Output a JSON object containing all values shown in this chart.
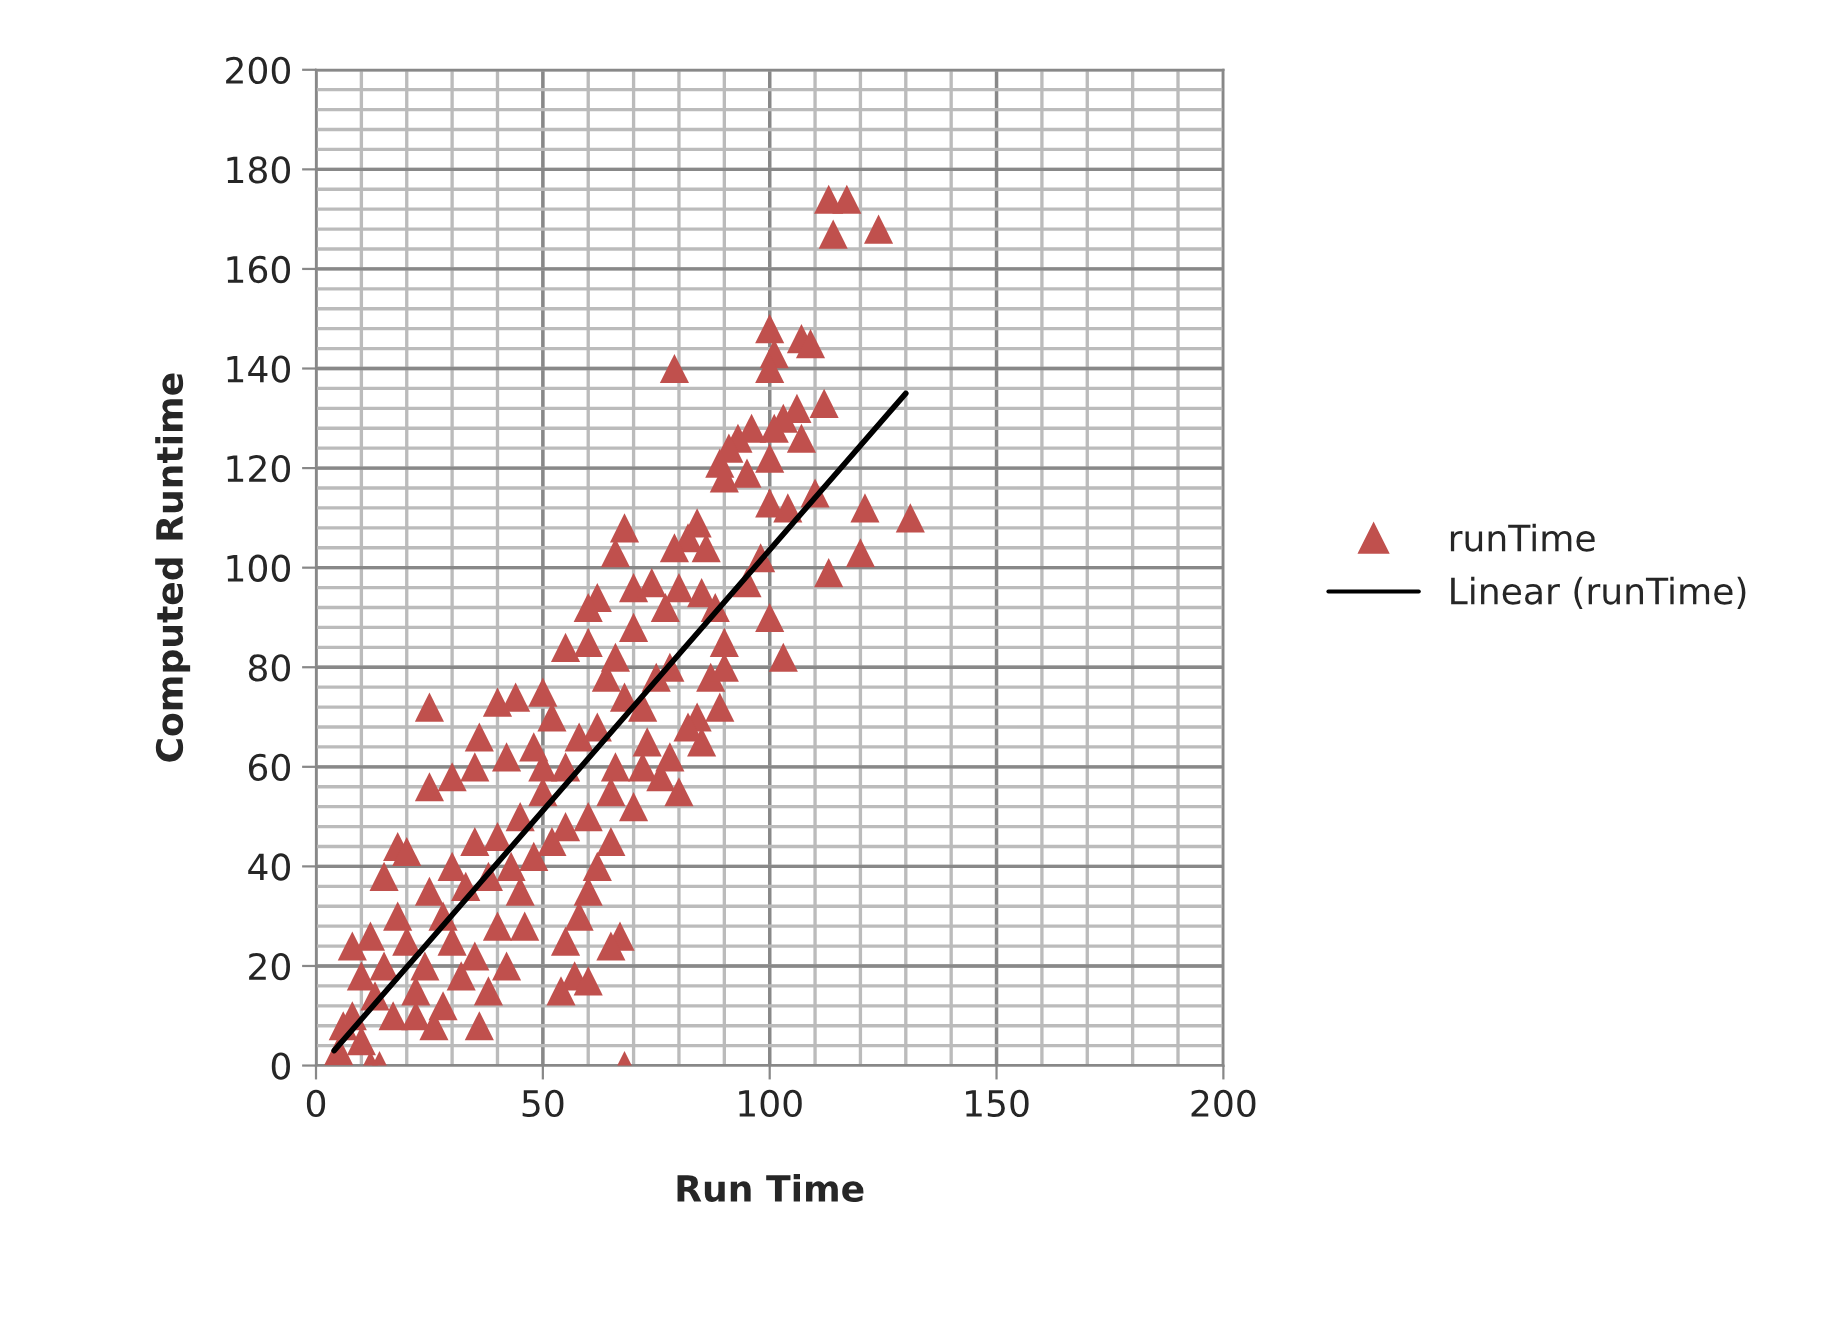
{
  "chart_data": {
    "type": "scatter",
    "xlabel": "Run Time",
    "ylabel": "Computed Runtime",
    "xlim": [
      0,
      200
    ],
    "xticks": [
      0,
      50,
      100,
      150,
      200
    ],
    "ylim": [
      0,
      200
    ],
    "yticks": [
      0,
      20,
      40,
      60,
      80,
      100,
      120,
      140,
      160,
      180,
      200
    ],
    "grid": true,
    "legend": "right",
    "marker": "triangle",
    "series": [
      {
        "name": "runTime",
        "color": "#c0504d",
        "x": [
          113,
          117,
          114,
          124,
          100,
          101,
          100,
          107,
          109,
          79,
          112,
          106,
          103,
          101,
          96,
          93,
          91,
          89,
          90,
          95,
          100,
          107,
          104,
          100,
          110,
          121,
          113,
          120,
          131,
          103,
          100,
          95,
          98,
          84,
          82,
          86,
          79,
          68,
          66,
          62,
          60,
          70,
          74,
          77,
          80,
          85,
          88,
          90,
          87,
          84,
          85,
          90,
          89,
          78,
          75,
          72,
          70,
          66,
          64,
          60,
          55,
          50,
          44,
          40,
          36,
          25,
          30,
          25,
          18,
          15,
          20,
          35,
          42,
          48,
          52,
          58,
          62,
          68,
          66,
          72,
          76,
          80,
          70,
          65,
          62,
          60,
          58,
          55,
          57,
          54,
          60,
          67,
          65,
          68,
          40,
          45,
          50,
          55,
          35,
          30,
          25,
          28,
          33,
          38,
          43,
          48,
          52,
          45,
          40,
          35,
          32,
          36,
          26,
          22,
          24,
          20,
          18,
          12,
          8,
          10,
          13,
          15,
          5,
          6,
          8,
          10,
          12,
          14,
          17,
          22,
          28,
          30,
          50,
          46,
          42,
          38,
          60,
          55,
          65,
          73,
          82,
          78
        ],
        "values": [
          174,
          174,
          167,
          168,
          148,
          143,
          140,
          146,
          145,
          140,
          133,
          132,
          130,
          128,
          128,
          126,
          124,
          121,
          118,
          119,
          122,
          126,
          112,
          113,
          115,
          112,
          99,
          103,
          110,
          82,
          90,
          97,
          102,
          109,
          106,
          104,
          104,
          108,
          103,
          94,
          92,
          96,
          97,
          92,
          96,
          95,
          92,
          85,
          78,
          70,
          65,
          80,
          72,
          80,
          78,
          72,
          88,
          82,
          78,
          85,
          84,
          75,
          74,
          73,
          66,
          72,
          58,
          56,
          44,
          38,
          43,
          60,
          62,
          64,
          70,
          66,
          68,
          74,
          60,
          60,
          58,
          55,
          52,
          45,
          40,
          35,
          30,
          25,
          18,
          15,
          17,
          26,
          24,
          0,
          46,
          50,
          55,
          60,
          45,
          40,
          35,
          30,
          36,
          38,
          40,
          42,
          45,
          35,
          28,
          22,
          18,
          8,
          8,
          10,
          20,
          25,
          30,
          26,
          24,
          18,
          14,
          20,
          3,
          8,
          10,
          5,
          0,
          0,
          10,
          15,
          12,
          25,
          60,
          28,
          20,
          15,
          50,
          48,
          55,
          65,
          68,
          62
        ]
      },
      {
        "name": "Linear (runTime)",
        "type": "line",
        "color": "#000000",
        "marker": "none",
        "line_style": "solid",
        "x": [
          4,
          130
        ],
        "values": [
          3,
          135
        ]
      }
    ]
  }
}
